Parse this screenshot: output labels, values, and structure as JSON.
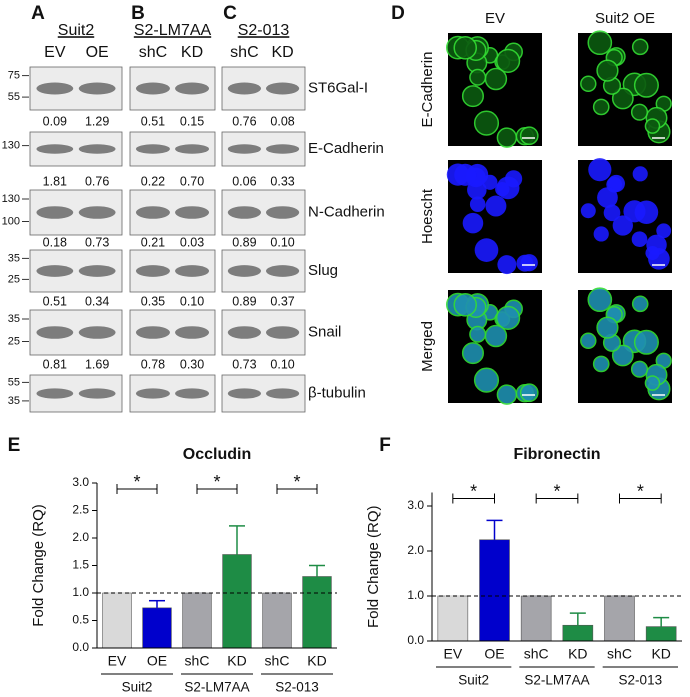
{
  "blots": {
    "groups": [
      {
        "letter": "A",
        "name": "Suit2",
        "lanes": [
          "EV",
          "OE"
        ]
      },
      {
        "letter": "B",
        "name": "S2-LM7AA",
        "lanes": [
          "shC",
          "KD"
        ]
      },
      {
        "letter": "C",
        "name": "S2-013",
        "lanes": [
          "shC",
          "KD"
        ]
      }
    ],
    "rows": [
      {
        "protein": "ST6Gal-I",
        "markers": [
          "75",
          "55"
        ],
        "quant": [
          [
            "0.09",
            "1.29"
          ],
          [
            "0.51",
            "0.15"
          ],
          [
            "0.76",
            "0.08"
          ]
        ]
      },
      {
        "protein": "E-Cadherin",
        "markers": [
          "130"
        ],
        "quant": [
          [
            "1.81",
            "0.76"
          ],
          [
            "0.22",
            "0.70"
          ],
          [
            "0.06",
            "0.33"
          ]
        ]
      },
      {
        "protein": "N-Cadherin",
        "markers": [
          "130",
          "100"
        ],
        "quant": [
          [
            "0.18",
            "0.73"
          ],
          [
            "0.21",
            "0.03"
          ],
          [
            "0.89",
            "0.10"
          ]
        ]
      },
      {
        "protein": "Slug",
        "markers": [
          "35",
          "25"
        ],
        "quant": [
          [
            "0.51",
            "0.34"
          ],
          [
            "0.35",
            "0.10"
          ],
          [
            "0.89",
            "0.37"
          ]
        ]
      },
      {
        "protein": "Snail",
        "markers": [
          "35",
          "25"
        ],
        "quant": [
          [
            "0.81",
            "1.69"
          ],
          [
            "0.78",
            "0.30"
          ],
          [
            "0.73",
            "0.10"
          ]
        ]
      },
      {
        "protein": "β-tubulin",
        "markers": [
          "55",
          "35"
        ]
      }
    ]
  },
  "microscopy": {
    "letter": "D",
    "columns": [
      "EV",
      "Suit2 OE"
    ],
    "rows": [
      "E-Cadherin",
      "Hoescht",
      "Merged"
    ]
  },
  "chart_data": [
    {
      "type": "bar",
      "letter": "E",
      "title": "Occludin",
      "y_label": "Fold Change (RQ)",
      "categories": [
        "EV",
        "OE",
        "shC",
        "KD",
        "shC",
        "KD"
      ],
      "groups": [
        "Suit2",
        "S2-LM7AA",
        "S2-013"
      ],
      "values": [
        1.0,
        0.73,
        1.0,
        1.7,
        1.0,
        1.3
      ],
      "errors": [
        0,
        0.13,
        0,
        0.52,
        0,
        0.2
      ],
      "colors": [
        "#d9d9d9",
        "#0000cc",
        "#a5a5aa",
        "#1e8c45",
        "#a5a5aa",
        "#1e8c45"
      ],
      "significance": [
        "*",
        "*",
        "*"
      ],
      "ref_line": 1.0,
      "ylim": [
        0,
        3.0
      ],
      "yticks": [
        {
          "value": 0,
          "label": "0.0"
        },
        {
          "value": 0.5,
          "label": "0.5"
        },
        {
          "value": 1,
          "label": "1.0"
        },
        {
          "value": 1.5,
          "label": "1.5"
        },
        {
          "value": 2,
          "label": "2.0"
        },
        {
          "value": 2.5,
          "label": "2.5"
        },
        {
          "value": 3,
          "label": "3.0"
        }
      ]
    },
    {
      "type": "bar",
      "letter": "F",
      "title": "Fibronectin",
      "y_label": "Fold Change (RQ)",
      "categories": [
        "EV",
        "OE",
        "shC",
        "KD",
        "shC",
        "KD"
      ],
      "groups": [
        "Suit2",
        "S2-LM7AA",
        "S2-013"
      ],
      "values": [
        1.0,
        2.25,
        1.0,
        0.35,
        1.0,
        0.32
      ],
      "errors": [
        0,
        0.43,
        0,
        0.27,
        0,
        0.2
      ],
      "colors": [
        "#d9d9d9",
        "#0000cc",
        "#a5a5aa",
        "#1e8c45",
        "#a5a5aa",
        "#1e8c45"
      ],
      "significance": [
        "*",
        "*",
        "*"
      ],
      "ref_line": 1.0,
      "ylim": [
        0,
        3.3
      ],
      "yticks": [
        {
          "value": 0,
          "label": "0.0"
        },
        {
          "value": 1,
          "label": "1.0"
        },
        {
          "value": 2,
          "label": "2.0"
        },
        {
          "value": 3,
          "label": "3.0"
        }
      ]
    }
  ]
}
